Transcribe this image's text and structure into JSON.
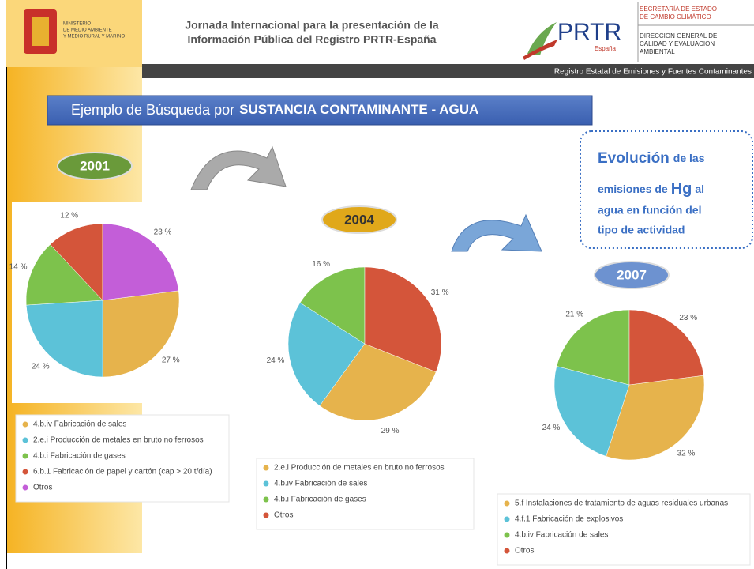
{
  "header": {
    "ministry": [
      "MINISTERIO",
      "DE MEDIO AMBIENTE",
      "Y MEDIO RURAL Y MARINO"
    ],
    "title": [
      "Jornada Internacional para la presentación de la",
      "Información Pública del Registro PRTR-España"
    ],
    "logo": "PRTR",
    "logo_sub": "España",
    "secretary": [
      "SECRETARÍA DE ESTADO",
      "DE CAMBIO CLIMÁTICO"
    ],
    "direction": [
      "DIRECCION GENERAL DE",
      "CALIDAD Y EVALUACION",
      "AMBIENTAL"
    ],
    "bar": "Registro Estatal de Emisiones y Fuentes Contaminantes"
  },
  "slide_title": {
    "prefix": "Ejemplo de Búsqueda por",
    "emphasis": "SUSTANCIA CONTAMINANTE - AGUA"
  },
  "callout": [
    "Evolución",
    "de las",
    "emisiones de",
    "Hg",
    "al",
    "agua en función del",
    "tipo de actividad"
  ],
  "chart_data": [
    {
      "type": "pie",
      "title": "2001",
      "categories": [
        "4.b.iv Fabricación de sales",
        "2.e.i Producción de metales en bruto no ferrosos",
        "4.b.i Fabricación de gases",
        "6.b.1 Fabricación de papel y cartón (cap > 20 t/día)",
        "Otros"
      ],
      "values": [
        27,
        24,
        14,
        12,
        23
      ],
      "value_labels": [
        "27 %",
        "24 %",
        "14 %",
        "12 %",
        "23 %"
      ],
      "colors": [
        "#e6b34c",
        "#5cc2d8",
        "#7dc24c",
        "#d4553a",
        "#c35ed8"
      ]
    },
    {
      "type": "pie",
      "title": "2004",
      "categories": [
        "2.e.i Producción de metales en bruto no ferrosos",
        "4.b.iv Fabricación de sales",
        "4.b.i Fabricación de gases",
        "Otros"
      ],
      "values": [
        29,
        24,
        16,
        31
      ],
      "value_labels": [
        "29 %",
        "24 %",
        "16 %",
        "31 %"
      ],
      "colors": [
        "#e6b34c",
        "#5cc2d8",
        "#7dc24c",
        "#d4553a"
      ]
    },
    {
      "type": "pie",
      "title": "2007",
      "categories": [
        "5.f Instalaciones de tratamiento de aguas residuales urbanas",
        "4.f.1 Fabricación de explosivos",
        "4.b.iv Fabricación de sales",
        "Otros"
      ],
      "values": [
        32,
        24,
        21,
        23
      ],
      "value_labels": [
        "32 %",
        "24 %",
        "21 %",
        "23 %"
      ],
      "colors": [
        "#e6b34c",
        "#5cc2d8",
        "#7dc24c",
        "#d4553a"
      ]
    }
  ]
}
